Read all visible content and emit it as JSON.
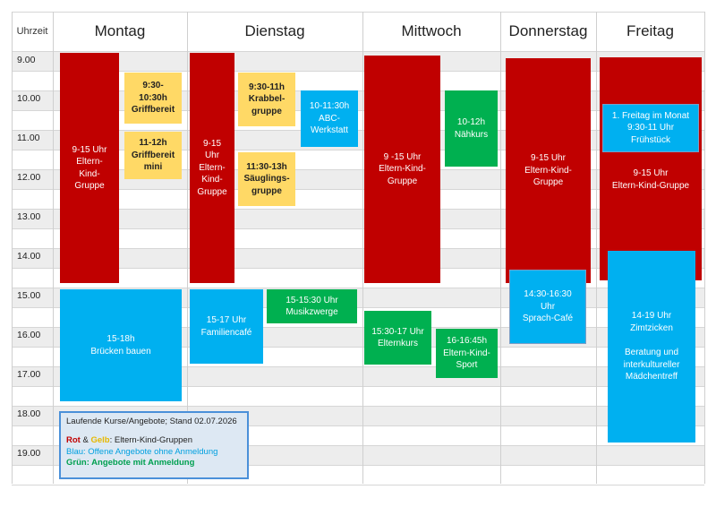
{
  "header": {
    "time_label": "Uhrzeit",
    "days": [
      "Montag",
      "Dienstag",
      "Mittwoch",
      "Donnerstag",
      "Freitag"
    ]
  },
  "times": [
    "9.00",
    "10.00",
    "11.00",
    "12.00",
    "13.00",
    "14.00",
    "15.00",
    "16.00",
    "17.00",
    "18.00",
    "19.00"
  ],
  "events": {
    "mon_red": [
      "9-15 Uhr",
      "Eltern-",
      "Kind-",
      "Gruppe"
    ],
    "mon_y1": [
      "9:30-",
      "10:30h",
      "Griffbereit"
    ],
    "mon_y2": [
      "11-12h",
      "Griffbereit",
      "mini"
    ],
    "mon_blue": [
      "15-18h",
      "Brücken bauen"
    ],
    "tue_red": [
      "9-15",
      "Uhr",
      "Eltern-",
      "Kind-",
      "Gruppe"
    ],
    "tue_y1": [
      "9:30-11h",
      "Krabbel-",
      "gruppe"
    ],
    "tue_blue1": [
      "10-11:30h",
      "ABC-",
      "Werkstatt"
    ],
    "tue_y2": [
      "11:30-13h",
      "Säuglings-",
      "gruppe"
    ],
    "tue_blue2": [
      "15-17 Uhr",
      "Familiencafé"
    ],
    "tue_green": [
      "15-15:30 Uhr",
      "Musikzwerge"
    ],
    "wed_red": [
      "9 -15 Uhr",
      "Eltern-Kind-",
      "Gruppe"
    ],
    "wed_green1": [
      "10-12h",
      "Nähkurs"
    ],
    "wed_green2": [
      "15:30-17 Uhr",
      "Elternkurs"
    ],
    "wed_green3": [
      "16-16:45h",
      "Eltern-Kind-",
      "Sport"
    ],
    "thu_red": [
      "9-15 Uhr",
      "Eltern-Kind-",
      "Gruppe"
    ],
    "thu_blue": [
      "14:30-16:30",
      "Uhr",
      "Sprach-Café"
    ],
    "fri_red": [
      "9-15 Uhr",
      "Eltern-Kind-Gruppe"
    ],
    "fri_blue_top": [
      "1. Freitag im Monat",
      "9:30-11 Uhr",
      "Frühstück"
    ],
    "fri_blue": [
      "14-19 Uhr",
      "Zimtzicken",
      "",
      "Beratung und",
      "interkultureller",
      "Mädchentreff"
    ]
  },
  "legend": {
    "title": "Laufende Kurse/Angebote; Stand 02.07.2026",
    "red_word": "Rot",
    "amp": " & ",
    "yellow_word": "Gelb",
    "yellow_text": ": Eltern-Kind-Gruppen",
    "blue_word": "Blau",
    "blue_text": ": Offene Angebote ohne Anmeldung",
    "green_word": "Grün",
    "green_text": ": Angebote mit Anmeldung"
  },
  "colors": {
    "red": "#c00000",
    "yellow": "#ffd966",
    "blue": "#00b0f0",
    "green": "#00b050",
    "stripe": "#ededed"
  }
}
